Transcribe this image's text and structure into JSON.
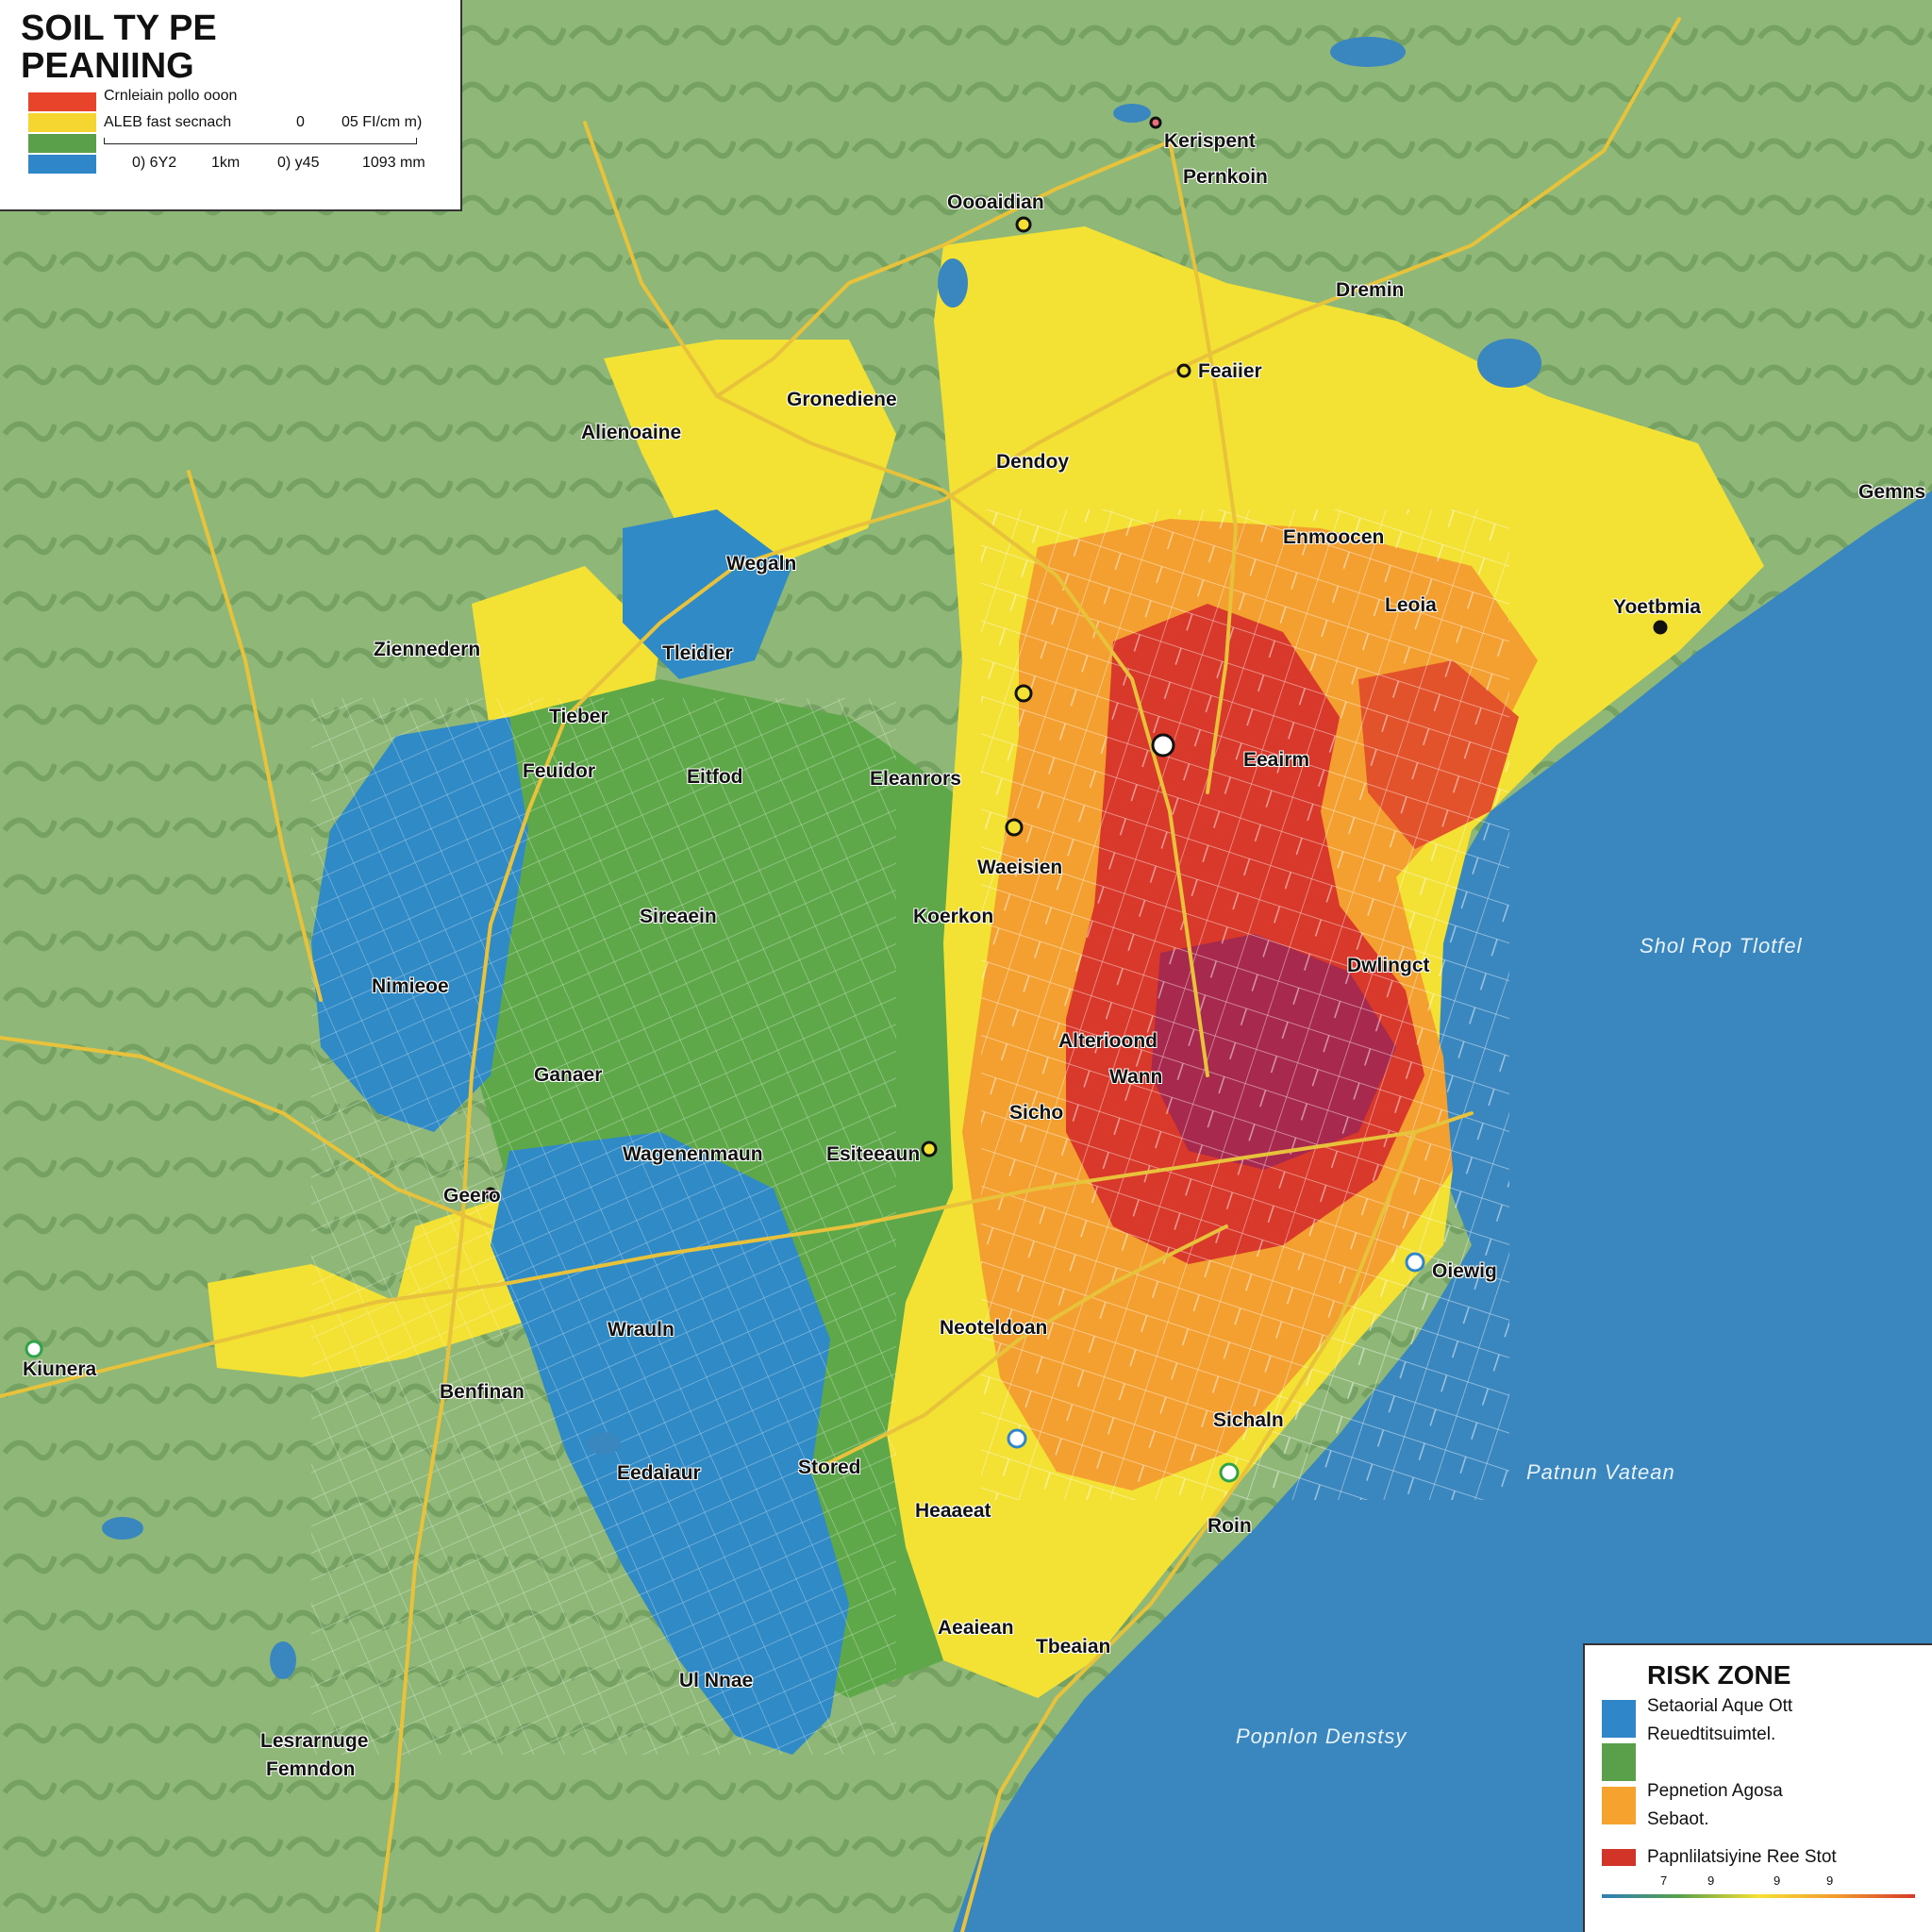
{
  "title_line1": "SOIL TY PE",
  "title_line2": "PEANIING",
  "top_legend": {
    "entries": [
      {
        "label": "Crnleiain pollo ooon",
        "color": "#e8442b"
      },
      {
        "label": "ALEB fast  secnach",
        "color": "#f5d52f"
      },
      {
        "label": "",
        "color": "#5aa04a"
      },
      {
        "label": "",
        "color": "#2f86c8"
      }
    ],
    "scale_top_left": "0",
    "scale_top_right": "05 FI/cm m)",
    "scale_ticks": [
      "0) 6Y2",
      "1km",
      "0) y45",
      "1093 mm"
    ]
  },
  "risk_legend": {
    "title": "RISK ZONE",
    "entries": [
      {
        "label": "Setaorial  Aque Ott",
        "color": "#2f86c8"
      },
      {
        "label": "Reuedtitsuimtel.",
        "color": "#5aa04a"
      },
      {
        "label": "Pepnetion  Agosa",
        "color": "#f5a32e"
      },
      {
        "label": "Sebaot.",
        "color": ""
      },
      {
        "label": "Papnlilatsiyine Ree Stot",
        "color": "#d23428"
      }
    ],
    "ramp_ticks": [
      "7",
      "9",
      "9",
      "9"
    ]
  },
  "water_labels": [
    "Shol  Rop  Tlotfel",
    "Patnun  Vatean",
    "Popnlon  Denstsy"
  ],
  "places": [
    {
      "name": "Kerispent"
    },
    {
      "name": "Pernkoin"
    },
    {
      "name": "Oooaidian"
    },
    {
      "name": "Dremin"
    },
    {
      "name": "Feaiier"
    },
    {
      "name": "Gronediene"
    },
    {
      "name": "Alienoaine"
    },
    {
      "name": "Dendoy"
    },
    {
      "name": "Gemns"
    },
    {
      "name": "Enmoocen"
    },
    {
      "name": "Leoia"
    },
    {
      "name": "Yoetbmia"
    },
    {
      "name": "Wegaln"
    },
    {
      "name": "Ziennedern"
    },
    {
      "name": "Tleidier"
    },
    {
      "name": "Tieber"
    },
    {
      "name": "Feuidor"
    },
    {
      "name": "Eitfod"
    },
    {
      "name": "Eleanrors"
    },
    {
      "name": "Eeairm"
    },
    {
      "name": "Waeisien"
    },
    {
      "name": "Sireaein"
    },
    {
      "name": "Koerkon"
    },
    {
      "name": "Nimieoe"
    },
    {
      "name": "Dwlingct"
    },
    {
      "name": "Alterioond"
    },
    {
      "name": "Wann"
    },
    {
      "name": "Sicho"
    },
    {
      "name": "Ganaer"
    },
    {
      "name": "Wagenenmaun"
    },
    {
      "name": "Esiteeaun"
    },
    {
      "name": "Geero"
    },
    {
      "name": "Oiewig"
    },
    {
      "name": "Kiunera"
    },
    {
      "name": "Wrauln"
    },
    {
      "name": "Neoteldoan"
    },
    {
      "name": "Benfinan"
    },
    {
      "name": "Sichaln"
    },
    {
      "name": "Eedaiaur"
    },
    {
      "name": "Stored"
    },
    {
      "name": "Heaaeat"
    },
    {
      "name": "Roin"
    },
    {
      "name": "Aeaiean"
    },
    {
      "name": "Tbeaian"
    },
    {
      "name": "Ul  Nnae"
    },
    {
      "name": "Lesrarnuge"
    },
    {
      "name": "Femndon"
    }
  ]
}
